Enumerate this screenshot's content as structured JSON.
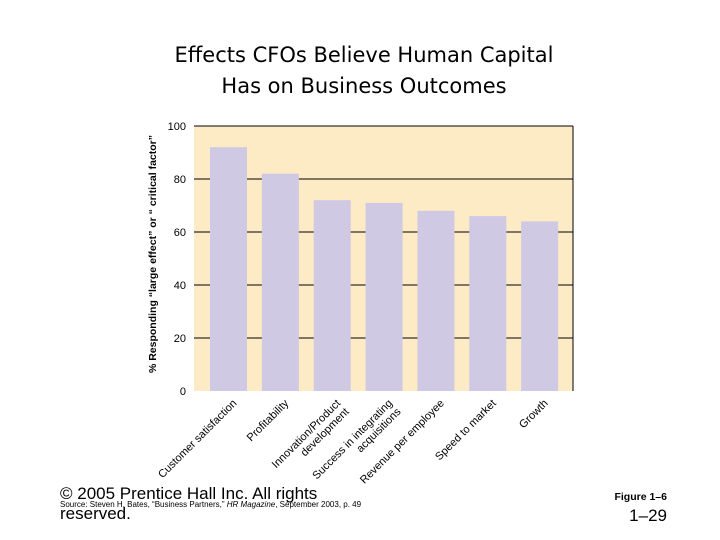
{
  "chart_data": {
    "type": "bar",
    "title_lines": [
      "Effects CFOs Believe Human Capital",
      "Has on Business Outcomes"
    ],
    "ylabel": "% Responding “large effect” or “ critical factor”",
    "ylim": [
      0,
      100
    ],
    "yticks": [
      0,
      20,
      40,
      60,
      80,
      100
    ],
    "grid": true,
    "categories": [
      [
        "Customer satisfaction"
      ],
      [
        "Profitability"
      ],
      [
        "Innovation/Product",
        "development"
      ],
      [
        "Success in integrating",
        "acquisitions"
      ],
      [
        "Revenue per employee"
      ],
      [
        "Speed to market"
      ],
      [
        "Growth"
      ]
    ],
    "values": [
      92,
      82,
      72,
      71,
      68,
      66,
      64
    ],
    "colors": {
      "bar": "#cfc9e3",
      "plot_bg": "#fdebc5",
      "grid": "#000000"
    }
  },
  "footer": {
    "copyright": "© 2005 Prentice Hall Inc. All rights reserved.",
    "source_prefix": "Source: Steven H. Bates, “Business Partners,” ",
    "source_magazine": "HR Magazine",
    "source_suffix": ", September 2003, p. 49",
    "figure_label": "Figure 1–6",
    "page_number": "1–29"
  }
}
